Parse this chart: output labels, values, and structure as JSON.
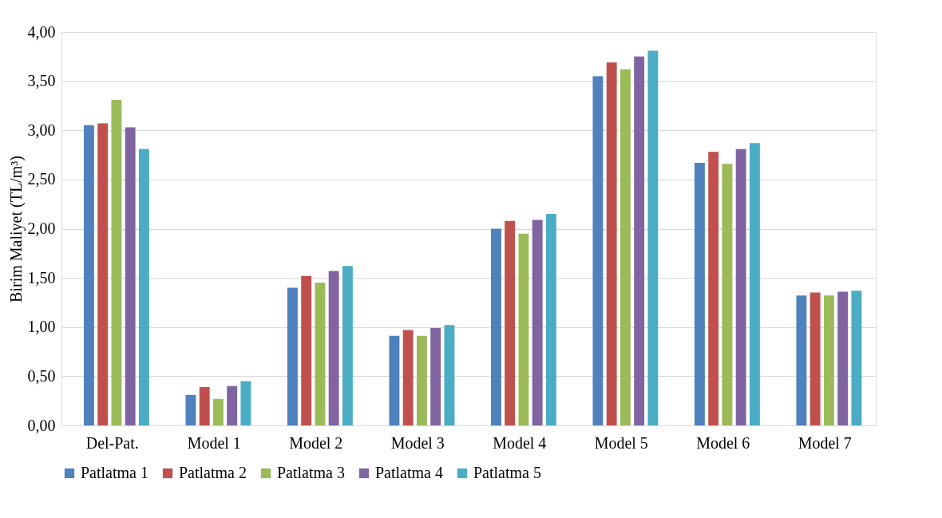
{
  "chart_data": {
    "type": "bar",
    "ylabel": "Birim Maliyet (TL/m³)",
    "categories": [
      "Del-Pat.",
      "Model 1",
      "Model 2",
      "Model 3",
      "Model 4",
      "Model 5",
      "Model 6",
      "Model 7"
    ],
    "series": [
      {
        "name": "Patlatma 1",
        "color": "#4f81bd",
        "values": [
          3.05,
          0.31,
          1.4,
          0.91,
          2.0,
          3.55,
          2.67,
          1.32
        ]
      },
      {
        "name": "Patlatma 2",
        "color": "#c0504d",
        "values": [
          3.07,
          0.39,
          1.52,
          0.97,
          2.08,
          3.69,
          2.78,
          1.35
        ]
      },
      {
        "name": "Patlatma 3",
        "color": "#9bbb59",
        "values": [
          3.31,
          0.27,
          1.45,
          0.91,
          1.95,
          3.62,
          2.66,
          1.32
        ]
      },
      {
        "name": "Patlatma 4",
        "color": "#8064a2",
        "values": [
          3.03,
          0.4,
          1.57,
          0.99,
          2.09,
          3.75,
          2.81,
          1.36
        ]
      },
      {
        "name": "Patlatma 5",
        "color": "#4bacc6",
        "values": [
          2.81,
          0.45,
          1.62,
          1.02,
          2.15,
          3.81,
          2.87,
          1.37
        ]
      }
    ],
    "ylim": [
      0,
      4
    ],
    "yticks": [
      {
        "value": 0,
        "label": "0,00"
      },
      {
        "value": 0.5,
        "label": "0,50"
      },
      {
        "value": 1,
        "label": "1,00"
      },
      {
        "value": 1.5,
        "label": "1,50"
      },
      {
        "value": 2,
        "label": "2,00"
      },
      {
        "value": 2.5,
        "label": "2,50"
      },
      {
        "value": 3,
        "label": "3,00"
      },
      {
        "value": 3.5,
        "label": "3,50"
      },
      {
        "value": 4,
        "label": "4,00"
      }
    ],
    "grid": "y",
    "legend": "bottom"
  }
}
